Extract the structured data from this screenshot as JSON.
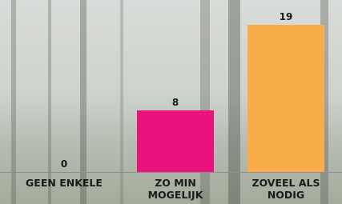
{
  "chart_data": {
    "type": "bar",
    "categories": [
      "GEEN ENKELE",
      "ZO MIN MOGELIJK",
      "ZOVEEL ALS NODIG"
    ],
    "values": [
      0,
      8,
      19
    ],
    "colors": [
      "#e8137d",
      "#e8137d",
      "#f9ad4a"
    ]
  }
}
